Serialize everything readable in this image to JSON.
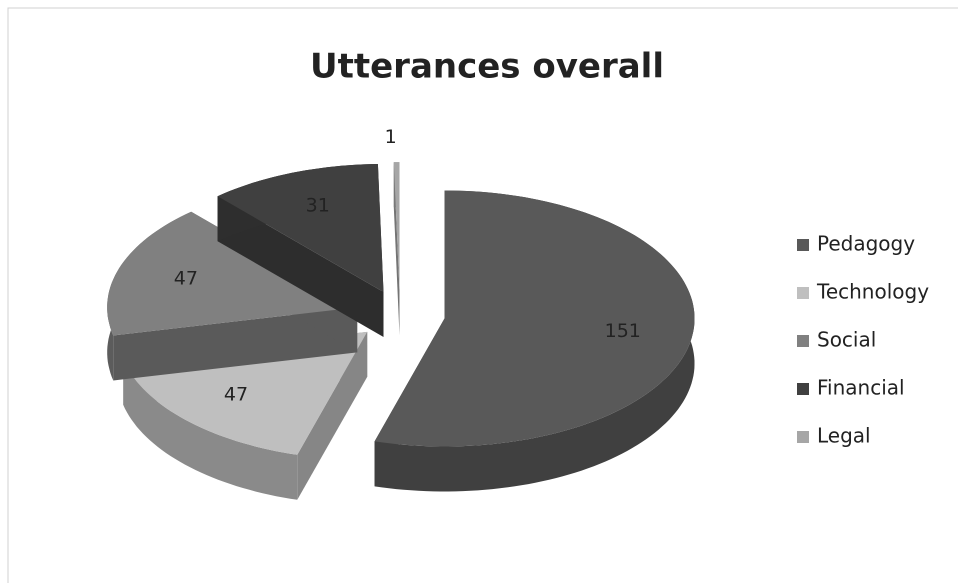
{
  "chart_data": {
    "type": "pie3d",
    "title": "Utterances overall",
    "categories": [
      "Pedagogy",
      "Technology",
      "Social",
      "Financial",
      "Legal"
    ],
    "values": [
      151,
      47,
      47,
      31,
      1
    ],
    "colors": [
      "#595959",
      "#bfbfbf",
      "#808080",
      "#404040",
      "#a6a6a6"
    ],
    "legend": "right"
  }
}
